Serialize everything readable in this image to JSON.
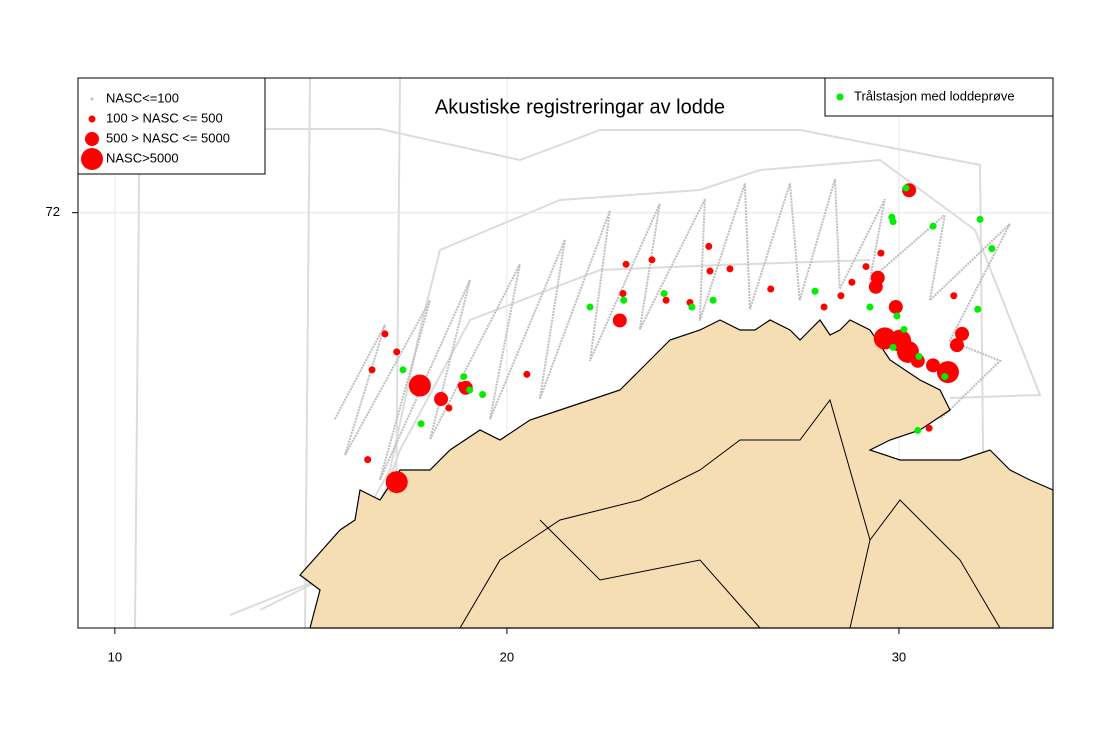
{
  "chart_data": {
    "type": "scatter",
    "title": "Akustiske registreringar av lodde",
    "xlim": [
      9.06,
      33.93
    ],
    "ylim": [
      70.15,
      72.6
    ],
    "xticks": [
      10,
      20,
      30
    ],
    "yticks": [
      72
    ],
    "grid": true,
    "series": [
      {
        "name": "NASC<=100",
        "color": "#bebebe",
        "legend": "top-left",
        "x": [
          15.61,
          16.89,
          15.87,
          18.04,
          16.76,
          19.06,
          18.04,
          20.33,
          19.57,
          21.48,
          20.84,
          22.63,
          22.12,
          23.9,
          23.39,
          25.05,
          24.92,
          26.07,
          26.2,
          27.22,
          27.47,
          28.37,
          28.49,
          29.64,
          29.26,
          31.17,
          30.79,
          32.83,
          31.3,
          32.58,
          31.05
        ],
        "values": [
          71.08,
          71.5,
          70.92,
          71.61,
          70.81,
          71.7,
          70.99,
          71.77,
          71.08,
          71.88,
          71.17,
          72.01,
          71.34,
          72.04,
          71.48,
          72.06,
          71.52,
          72.13,
          71.57,
          72.13,
          71.61,
          72.15,
          71.66,
          72.06,
          71.7,
          71.99,
          71.61,
          71.95,
          71.43,
          71.34,
          71.08
        ]
      },
      {
        "name": "100 > NASC <= 500",
        "color": "#ff0000",
        "legend": "top-left",
        "x": [
          16.89,
          17.19,
          16.56,
          16.45,
          18.52,
          20.51,
          23.04,
          23.7,
          25.15,
          25.18,
          25.69,
          24.06,
          24.67,
          26.73,
          28.09,
          28.52,
          28.8,
          29.16,
          29.54,
          31.4,
          30.77,
          22.96,
          18.83
        ],
        "values": [
          71.46,
          71.38,
          71.3,
          70.9,
          71.13,
          71.28,
          71.77,
          71.79,
          71.85,
          71.74,
          71.75,
          71.61,
          71.6,
          71.66,
          71.58,
          71.63,
          71.69,
          71.76,
          71.82,
          71.63,
          71.04,
          71.64,
          71.23
        ]
      },
      {
        "name": "500 > NASC <= 5000",
        "color": "#ff0000",
        "legend": "top-left",
        "x": [
          18.32,
          18.95,
          22.88,
          29.41,
          29.46,
          31.61,
          31.48,
          30.87,
          30.26,
          29.92,
          30.48
        ],
        "values": [
          71.17,
          71.22,
          71.52,
          71.67,
          71.71,
          71.46,
          71.41,
          71.32,
          72.1,
          71.58,
          71.34
        ]
      },
      {
        "name": "NASC>5000",
        "color": "#ff0000",
        "legend": "top-left",
        "x": [
          17.78,
          17.19,
          29.64,
          30.03,
          30.23,
          31.25
        ],
        "values": [
          71.23,
          70.8,
          71.44,
          71.43,
          71.38,
          71.29
        ]
      },
      {
        "name": "Trålstasjon med loddeprøve",
        "color": "#00ee00",
        "legend": "top-right",
        "x": [
          30.18,
          29.82,
          29.85,
          30.87,
          32.07,
          32.37,
          32.01,
          29.95,
          30.13,
          29.85,
          30.51,
          31.17,
          30.48,
          29.26,
          27.86,
          25.26,
          24.72,
          24.01,
          22.98,
          22.12,
          17.35,
          18.9,
          19.05,
          19.38,
          17.81
        ],
        "values": [
          72.11,
          71.98,
          71.96,
          71.94,
          71.97,
          71.84,
          71.57,
          71.54,
          71.48,
          71.4,
          71.36,
          71.27,
          71.03,
          71.58,
          71.65,
          71.61,
          71.58,
          71.64,
          71.61,
          71.58,
          71.3,
          71.27,
          71.21,
          71.19,
          71.06
        ]
      }
    ]
  }
}
